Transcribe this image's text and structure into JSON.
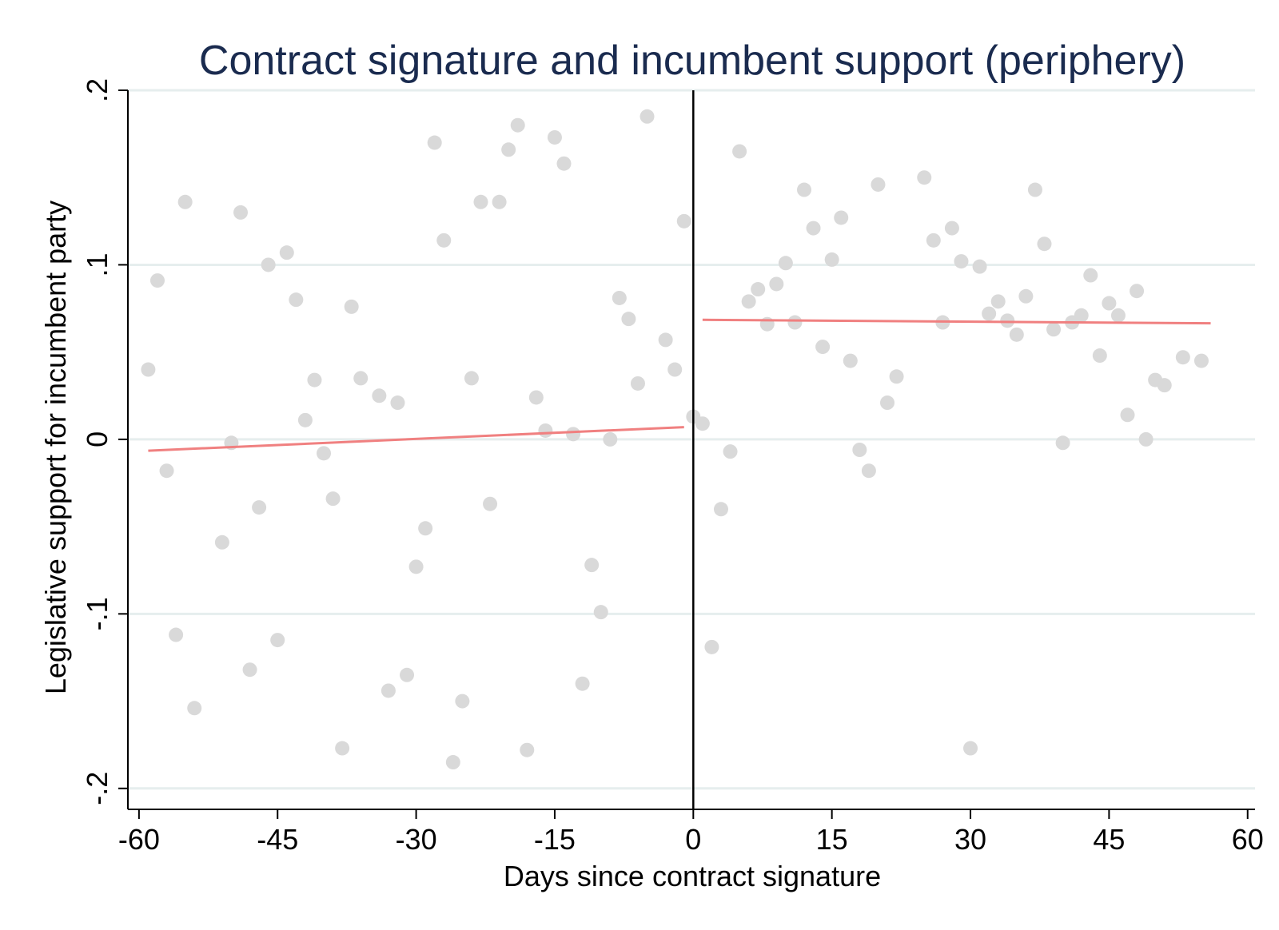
{
  "chart_data": {
    "type": "scatter",
    "title": "Contract signature and incumbent support (periphery)",
    "xlabel": "Days since contract signature",
    "ylabel": "Legislative support for incumbent party",
    "xlim": [
      -61.2,
      60.8
    ],
    "ylim": [
      -0.212,
      0.2
    ],
    "xticks": [
      -60,
      -45,
      -30,
      -15,
      0,
      15,
      30,
      45,
      60
    ],
    "xtick_labels": [
      "-60",
      "-45",
      "-30",
      "-15",
      "0",
      "15",
      "30",
      "45",
      "60"
    ],
    "yticks": [
      -0.2,
      -0.1,
      0,
      0.1,
      0.2
    ],
    "ytick_labels": [
      "-.2",
      "-.1",
      "0",
      ".1",
      ".2"
    ],
    "grid": true,
    "cutoff_x": 0,
    "colors": {
      "title": "#1a2b4f",
      "points": "#d9d9d9",
      "fit": "#f08080",
      "grid": "#e6eeee",
      "axis": "#000000"
    },
    "series": [
      {
        "type": "scatter",
        "points": [
          [
            -59,
            0.04
          ],
          [
            -58,
            0.091
          ],
          [
            -57,
            -0.018
          ],
          [
            -56,
            -0.112
          ],
          [
            -55,
            0.136
          ],
          [
            -54,
            -0.154
          ],
          [
            -51,
            -0.059
          ],
          [
            -50,
            -0.002
          ],
          [
            -49,
            0.13
          ],
          [
            -48,
            -0.132
          ],
          [
            -47,
            -0.039
          ],
          [
            -46,
            0.1
          ],
          [
            -45,
            -0.115
          ],
          [
            -44,
            0.107
          ],
          [
            -43,
            0.08
          ],
          [
            -42,
            0.011
          ],
          [
            -41,
            0.034
          ],
          [
            -40,
            -0.008
          ],
          [
            -39,
            -0.034
          ],
          [
            -38,
            -0.177
          ],
          [
            -37,
            0.076
          ],
          [
            -36,
            0.035
          ],
          [
            -34,
            0.025
          ],
          [
            -33,
            -0.144
          ],
          [
            -32,
            0.021
          ],
          [
            -31,
            -0.135
          ],
          [
            -30,
            -0.073
          ],
          [
            -29,
            -0.051
          ],
          [
            -28,
            0.17
          ],
          [
            -27,
            0.114
          ],
          [
            -26,
            -0.185
          ],
          [
            -25,
            -0.15
          ],
          [
            -24,
            0.035
          ],
          [
            -23,
            0.136
          ],
          [
            -22,
            -0.037
          ],
          [
            -21,
            0.136
          ],
          [
            -20,
            0.166
          ],
          [
            -19,
            0.18
          ],
          [
            -18,
            -0.178
          ],
          [
            -17,
            0.024
          ],
          [
            -16,
            0.005
          ],
          [
            -15,
            0.173
          ],
          [
            -14,
            0.158
          ],
          [
            -13,
            0.003
          ],
          [
            -12,
            -0.14
          ],
          [
            -11,
            -0.072
          ],
          [
            -10,
            -0.099
          ],
          [
            -9,
            0.0
          ],
          [
            -8,
            0.081
          ],
          [
            -7,
            0.069
          ],
          [
            -6,
            0.032
          ],
          [
            -5,
            0.185
          ],
          [
            -3,
            0.057
          ],
          [
            -2,
            0.04
          ],
          [
            -1,
            0.125
          ],
          [
            0,
            0.013
          ],
          [
            1,
            0.009
          ],
          [
            2,
            -0.119
          ],
          [
            3,
            -0.04
          ],
          [
            4,
            -0.007
          ],
          [
            5,
            0.165
          ],
          [
            6,
            0.079
          ],
          [
            7,
            0.086
          ],
          [
            8,
            0.066
          ],
          [
            9,
            0.089
          ],
          [
            10,
            0.101
          ],
          [
            11,
            0.067
          ],
          [
            12,
            0.143
          ],
          [
            13,
            0.121
          ],
          [
            14,
            0.053
          ],
          [
            15,
            0.103
          ],
          [
            16,
            0.127
          ],
          [
            17,
            0.045
          ],
          [
            18,
            -0.006
          ],
          [
            19,
            -0.018
          ],
          [
            20,
            0.146
          ],
          [
            21,
            0.021
          ],
          [
            22,
            0.036
          ],
          [
            25,
            0.15
          ],
          [
            26,
            0.114
          ],
          [
            27,
            0.067
          ],
          [
            28,
            0.121
          ],
          [
            29,
            0.102
          ],
          [
            30,
            -0.177
          ],
          [
            31,
            0.099
          ],
          [
            32,
            0.072
          ],
          [
            33,
            0.079
          ],
          [
            34,
            0.068
          ],
          [
            35,
            0.06
          ],
          [
            36,
            0.082
          ],
          [
            37,
            0.143
          ],
          [
            38,
            0.112
          ],
          [
            39,
            0.063
          ],
          [
            40,
            -0.002
          ],
          [
            41,
            0.067
          ],
          [
            42,
            0.071
          ],
          [
            43,
            0.094
          ],
          [
            44,
            0.048
          ],
          [
            45,
            0.078
          ],
          [
            46,
            0.071
          ],
          [
            47,
            0.014
          ],
          [
            48,
            0.085
          ],
          [
            49,
            0.0
          ],
          [
            50,
            0.034
          ],
          [
            51,
            0.031
          ],
          [
            53,
            0.047
          ],
          [
            55,
            0.045
          ]
        ]
      },
      {
        "type": "line",
        "points": [
          [
            -59,
            -0.0065
          ],
          [
            -1,
            0.007
          ]
        ]
      },
      {
        "type": "line",
        "points": [
          [
            1,
            0.0685
          ],
          [
            56,
            0.0665
          ]
        ]
      }
    ]
  }
}
